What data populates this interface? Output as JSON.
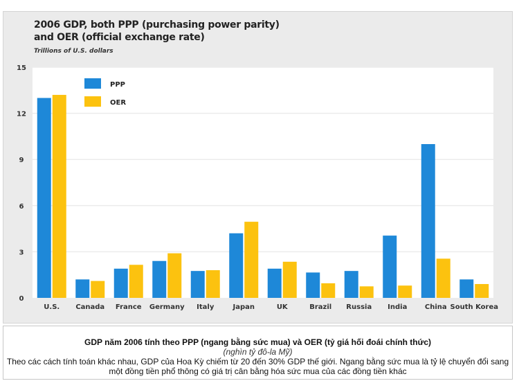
{
  "chart_data": {
    "type": "bar",
    "title_lines": [
      "2006 GDP, both PPP (purchasing power parity)",
      "and OER (official exchange rate)"
    ],
    "subtitle": "Trillions of U.S. dollars",
    "xlabel": "",
    "ylabel": "",
    "ylim": [
      0,
      15
    ],
    "yticks": [
      0,
      3,
      6,
      9,
      12,
      15
    ],
    "grid": true,
    "legend_position": "top-left",
    "categories": [
      "U.S.",
      "Canada",
      "France",
      "Germany",
      "Italy",
      "Japan",
      "UK",
      "Brazil",
      "Russia",
      "India",
      "China",
      "South Korea"
    ],
    "series": [
      {
        "name": "PPP",
        "color": "#1e88d8",
        "values": [
          13.0,
          1.2,
          1.9,
          2.4,
          1.75,
          4.2,
          1.9,
          1.65,
          1.75,
          4.05,
          10.0,
          1.2
        ]
      },
      {
        "name": "OER",
        "color": "#fcc20f",
        "values": [
          13.2,
          1.1,
          2.15,
          2.9,
          1.8,
          4.95,
          2.35,
          0.95,
          0.75,
          0.8,
          2.55,
          0.9
        ]
      }
    ]
  },
  "caption": {
    "title": "GDP năm 2006 tính theo PPP (ngang bằng sức mua) và OER (tỷ giá hối đoái chính thức)",
    "unit": "(nghìn tỷ đô-la Mỹ)",
    "body": "Theo các cách tính toán khác nhau, GDP của Hoa Kỳ chiếm từ 20 đến 30% GDP thế giới. Ngang bằng sức mua là tỷ lệ chuyển đổi sang một đồng tiền phổ thông có giá trị cân bằng hóa sức mua của các đồng tiền khác"
  }
}
